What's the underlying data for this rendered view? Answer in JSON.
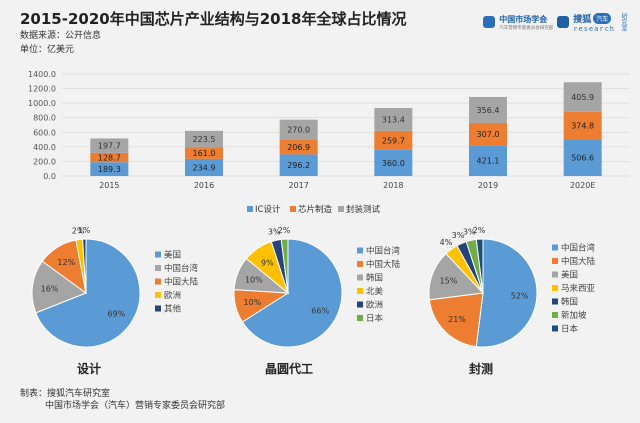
{
  "title": "2015-2020年中国芯片产业结构与2018年全球占比情况",
  "source": "数据来源：公开信息",
  "unit": "单位：亿美元",
  "logo": {
    "brand1": "中国市场学会",
    "brand1_sub": "汽车营销专家委员会研究部",
    "brand2": "搜狐",
    "brand2_pill": "汽车",
    "brand2_sub": "research",
    "brand2_vertical": "研究室"
  },
  "colors": {
    "blue": "#5b9bd5",
    "orange": "#ed7d31",
    "gray": "#a5a5a5",
    "yellow": "#ffc000",
    "navy": "#264478",
    "green": "#70ad47",
    "darkblue": "#1f4e79"
  },
  "chart_data": [
    {
      "type": "bar",
      "stacked": true,
      "categories": [
        "2015",
        "2016",
        "2017",
        "2018",
        "2019",
        "2020E"
      ],
      "series": [
        {
          "name": "IC设计",
          "values": [
            189.3,
            234.9,
            296.2,
            360.0,
            421.1,
            506.6
          ],
          "labels": [
            "189.3",
            "234.9",
            "296.2",
            "360.0",
            "421.1",
            "506.6"
          ]
        },
        {
          "name": "芯片制造",
          "values": [
            128.7,
            161.0,
            206.9,
            259.7,
            307.0,
            374.8
          ],
          "labels": [
            "128.7",
            "161.0",
            "206.9",
            "259.7",
            "307.0",
            "374.8"
          ]
        },
        {
          "name": "封装测试",
          "values": [
            197.7,
            223.5,
            270.0,
            313.4,
            356.4,
            405.9
          ],
          "labels": [
            "197.7",
            "223.5",
            "270.0",
            "313.4",
            "356.4",
            "405.9"
          ]
        }
      ],
      "yticks": [
        "1400.0",
        "1200.0",
        "1000.0",
        "800.0",
        "600.0",
        "400.0",
        "200.0",
        "0.0"
      ],
      "ylim": [
        0,
        1400
      ],
      "grid": true,
      "legend": "bottom"
    },
    {
      "type": "pie",
      "title": "设计",
      "labels": [
        "美国",
        "中国台湾",
        "中国大陆",
        "欧洲",
        "其他"
      ],
      "values": [
        69,
        16,
        12,
        2,
        1
      ],
      "value_labels": [
        "69%",
        "16%",
        "12%",
        "2%",
        "1%"
      ],
      "legend": "right"
    },
    {
      "type": "pie",
      "title": "晶圆代工",
      "labels": [
        "中国台湾",
        "中国大陆",
        "韩国",
        "北美",
        "欧洲",
        "日本"
      ],
      "values": [
        66,
        10,
        10,
        9,
        3,
        2
      ],
      "value_labels": [
        "66%",
        "10%",
        "10%",
        "9%",
        "3%",
        "2%"
      ],
      "legend": "right"
    },
    {
      "type": "pie",
      "title": "封测",
      "labels": [
        "中国台湾",
        "中国大陆",
        "美国",
        "马来西亚",
        "韩国",
        "新加坡",
        "日本"
      ],
      "values": [
        52,
        21,
        15,
        4,
        3,
        3,
        2
      ],
      "value_labels": [
        "52%",
        "21%",
        "15%",
        "4%",
        "3%",
        "3%",
        "2%"
      ],
      "legend": "right"
    }
  ],
  "footer": {
    "line1": "制表：搜狐汽车研究室",
    "line2": "中国市场学会（汽车）营销专家委员会研究部"
  }
}
